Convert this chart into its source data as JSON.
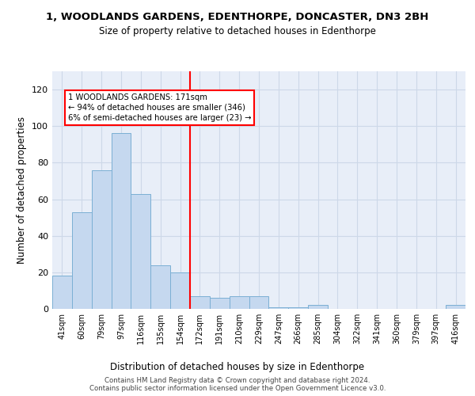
{
  "title": "1, WOODLANDS GARDENS, EDENTHORPE, DONCASTER, DN3 2BH",
  "subtitle": "Size of property relative to detached houses in Edenthorpe",
  "xlabel": "Distribution of detached houses by size in Edenthorpe",
  "ylabel": "Number of detached properties",
  "bar_labels": [
    "41sqm",
    "60sqm",
    "79sqm",
    "97sqm",
    "116sqm",
    "135sqm",
    "154sqm",
    "172sqm",
    "191sqm",
    "210sqm",
    "229sqm",
    "247sqm",
    "266sqm",
    "285sqm",
    "304sqm",
    "322sqm",
    "341sqm",
    "360sqm",
    "379sqm",
    "397sqm",
    "416sqm"
  ],
  "bar_values": [
    18,
    53,
    76,
    96,
    63,
    24,
    20,
    7,
    6,
    7,
    7,
    1,
    1,
    2,
    0,
    0,
    0,
    0,
    0,
    0,
    2
  ],
  "bar_color": "#c5d8ef",
  "bar_edge_color": "#7bafd4",
  "vline_pos": 6.5,
  "vline_color": "red",
  "annotation_text": "1 WOODLANDS GARDENS: 171sqm\n← 94% of detached houses are smaller (346)\n6% of semi-detached houses are larger (23) →",
  "ylim": [
    0,
    130
  ],
  "yticks": [
    0,
    20,
    40,
    60,
    80,
    100,
    120
  ],
  "grid_color": "#cdd8e8",
  "background_color": "#e8eef8",
  "footer": "Contains HM Land Registry data © Crown copyright and database right 2024.\nContains public sector information licensed under the Open Government Licence v3.0."
}
